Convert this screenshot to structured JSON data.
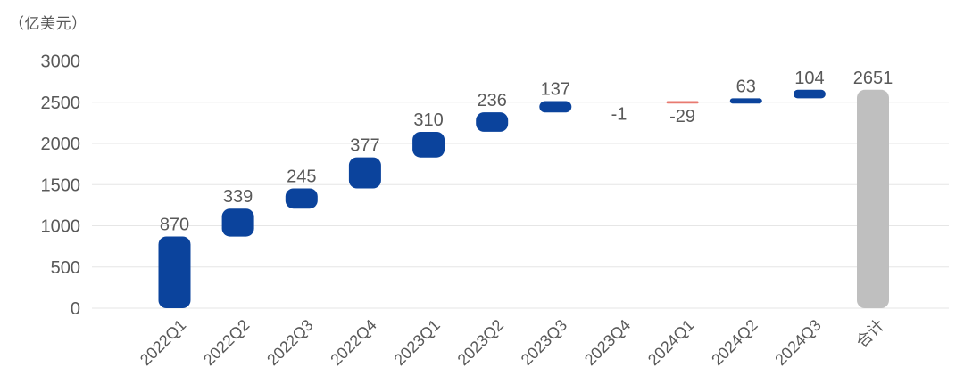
{
  "colors": {
    "increase": "#0b439c",
    "decrease": "#e87a70",
    "total": "#bfbfbf",
    "grid": "#e6e6e6",
    "label": "#595959",
    "axis_text": "#595959",
    "background": "#ffffff"
  },
  "chart_data": {
    "type": "bar",
    "subtype": "waterfall",
    "title": "",
    "unit": "（亿美元）",
    "xlabel": "",
    "ylabel": "（亿美元）",
    "categories": [
      "2022Q1",
      "2022Q2",
      "2022Q3",
      "2022Q4",
      "2023Q1",
      "2023Q2",
      "2023Q3",
      "2023Q4",
      "2024Q1",
      "2024Q2",
      "2024Q3",
      "合计"
    ],
    "values": [
      870,
      339,
      245,
      377,
      310,
      236,
      137,
      -1,
      -29,
      63,
      104,
      2651
    ],
    "roles": [
      "increase",
      "increase",
      "increase",
      "increase",
      "increase",
      "increase",
      "increase",
      "decrease",
      "decrease",
      "increase",
      "increase",
      "total"
    ],
    "cumulative": [
      870,
      1209,
      1454,
      1831,
      2141,
      2377,
      2514,
      2513,
      2484,
      2547,
      2651,
      2651
    ],
    "ylim": [
      0,
      3000
    ],
    "yticks": [
      0,
      500,
      1000,
      1500,
      2000,
      2500,
      3000
    ],
    "grid": true,
    "legend": false
  }
}
